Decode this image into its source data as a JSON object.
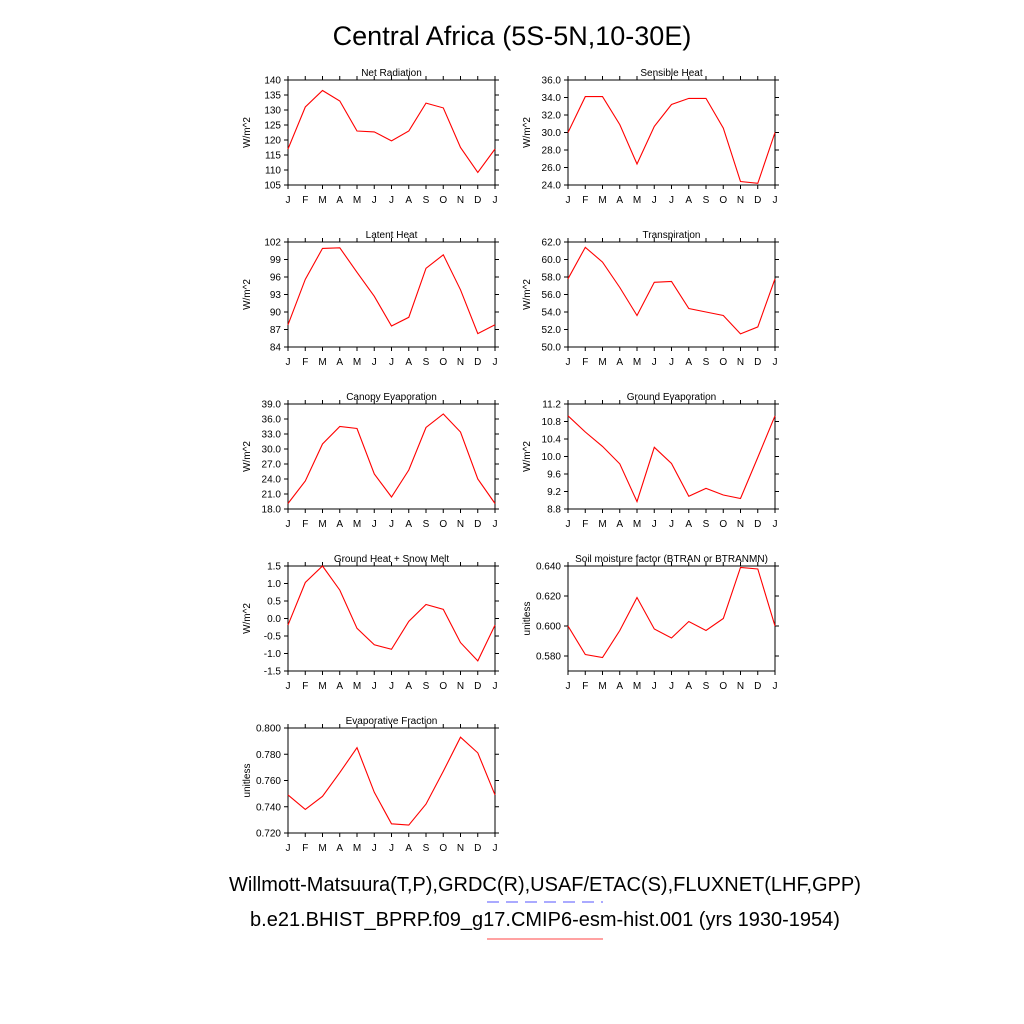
{
  "title": "Central Africa (5S-5N,10-30E)",
  "legend": {
    "line1": "Willmott-Matsuura(T,P),GRDC(R),USAF/ETAC(S),FLUXNET(LHF,GPP)",
    "line2": "b.e21.BHIST_BPRP.f09_g17.CMIP6-esm-hist.001 (yrs 1930-1954)",
    "line1_color": "#5555ff",
    "line2_color": "#ff4444"
  },
  "colors": {
    "series": "#ff0000",
    "axis": "#000000"
  },
  "months": [
    "J",
    "F",
    "M",
    "A",
    "M",
    "J",
    "J",
    "A",
    "S",
    "O",
    "N",
    "D",
    "J"
  ],
  "chart_data": [
    {
      "type": "line",
      "title": "Net Radiation",
      "ylabel": "W/m^2",
      "ylim": [
        105,
        140
      ],
      "yticks": [
        105,
        110,
        115,
        120,
        125,
        130,
        135,
        140
      ],
      "yticklabels": [
        "105",
        "110",
        "115",
        "120",
        "125",
        "130",
        "135",
        "140"
      ],
      "values": [
        117,
        131,
        136.5,
        133,
        123,
        122.7,
        119.7,
        123,
        132.3,
        130.7,
        117.5,
        109.2,
        117
      ]
    },
    {
      "type": "line",
      "title": "Sensible Heat",
      "ylabel": "W/m^2",
      "ylim": [
        24,
        36
      ],
      "yticks": [
        24,
        26,
        28,
        30,
        32,
        34,
        36
      ],
      "yticklabels": [
        "24.0",
        "26.0",
        "28.0",
        "30.0",
        "32.0",
        "34.0",
        "36.0"
      ],
      "values": [
        30,
        34.1,
        34.1,
        30.9,
        26.4,
        30.7,
        33.2,
        33.9,
        33.9,
        30.5,
        24.4,
        24.2,
        30
      ]
    },
    {
      "type": "line",
      "title": "Latent Heat",
      "ylabel": "W/m^2",
      "ylim": [
        84,
        102
      ],
      "yticks": [
        84,
        87,
        90,
        93,
        96,
        99,
        102
      ],
      "yticklabels": [
        "84",
        "87",
        "90",
        "93",
        "96",
        "99",
        "102"
      ],
      "values": [
        87.8,
        95.6,
        100.9,
        101,
        96.8,
        92.7,
        87.6,
        89.1,
        97.5,
        99.8,
        93.8,
        86.3,
        87.8
      ]
    },
    {
      "type": "line",
      "title": "Transpiration",
      "ylabel": "W/m^2",
      "ylim": [
        50,
        62
      ],
      "yticks": [
        50,
        52,
        54,
        56,
        58,
        60,
        62
      ],
      "yticklabels": [
        "50.0",
        "52.0",
        "54.0",
        "56.0",
        "58.0",
        "60.0",
        "62.0"
      ],
      "values": [
        57.8,
        61.4,
        59.7,
        56.8,
        53.6,
        57.4,
        57.5,
        54.4,
        54,
        53.6,
        51.5,
        52.3,
        57.8
      ]
    },
    {
      "type": "line",
      "title": "Canopy Evaporation",
      "ylabel": "W/m^2",
      "ylim": [
        18,
        39
      ],
      "yticks": [
        18,
        21,
        24,
        27,
        30,
        33,
        36,
        39
      ],
      "yticklabels": [
        "18.0",
        "21.0",
        "24.0",
        "27.0",
        "30.0",
        "33.0",
        "36.0",
        "39.0"
      ],
      "values": [
        19.1,
        23.6,
        31,
        34.5,
        34.1,
        25,
        20.4,
        25.8,
        34.3,
        37,
        33.4,
        24,
        19.1
      ]
    },
    {
      "type": "line",
      "title": "Ground Evaporation",
      "ylabel": "W/m^2",
      "ylim": [
        8.8,
        11.2
      ],
      "yticks": [
        8.8,
        9.2,
        9.6,
        10.0,
        10.4,
        10.8,
        11.2
      ],
      "yticklabels": [
        "8.8",
        "9.2",
        "9.6",
        "10.0",
        "10.4",
        "10.8",
        "11.2"
      ],
      "values": [
        10.93,
        10.56,
        10.23,
        9.83,
        8.97,
        10.21,
        9.84,
        9.09,
        9.27,
        9.12,
        9.04,
        9.98,
        10.93
      ]
    },
    {
      "type": "line",
      "title": "Ground Heat + Snow Melt",
      "ylabel": "W/m^2",
      "ylim": [
        -1.5,
        1.5
      ],
      "yticks": [
        -1.5,
        -1.0,
        -0.5,
        0.0,
        0.5,
        1.0,
        1.5
      ],
      "yticklabels": [
        "-1.5",
        "-1.0",
        "-0.5",
        "0.0",
        "0.5",
        "1.0",
        "1.5"
      ],
      "values": [
        -0.19,
        1.03,
        1.5,
        0.81,
        -0.28,
        -0.75,
        -0.88,
        -0.08,
        0.4,
        0.26,
        -0.69,
        -1.21,
        -0.19
      ]
    },
    {
      "type": "line",
      "title": "Soil moisture factor (BTRAN or BTRANMN)",
      "ylabel": "unitless",
      "ylim": [
        0.57,
        0.64
      ],
      "yticks": [
        0.58,
        0.6,
        0.62,
        0.64
      ],
      "yticklabels": [
        "0.580",
        "0.600",
        "0.620",
        "0.640"
      ],
      "values": [
        0.6,
        0.581,
        0.579,
        0.597,
        0.619,
        0.598,
        0.592,
        0.603,
        0.597,
        0.605,
        0.639,
        0.638,
        0.6
      ]
    },
    {
      "type": "line",
      "title": "Evaporative Fraction",
      "ylabel": "unitless",
      "ylim": [
        0.72,
        0.8
      ],
      "yticks": [
        0.72,
        0.74,
        0.76,
        0.78,
        0.8
      ],
      "yticklabels": [
        "0.720",
        "0.740",
        "0.760",
        "0.780",
        "0.800"
      ],
      "values": [
        0.749,
        0.738,
        0.748,
        0.766,
        0.785,
        0.751,
        0.727,
        0.726,
        0.742,
        0.767,
        0.793,
        0.781,
        0.749
      ]
    }
  ]
}
